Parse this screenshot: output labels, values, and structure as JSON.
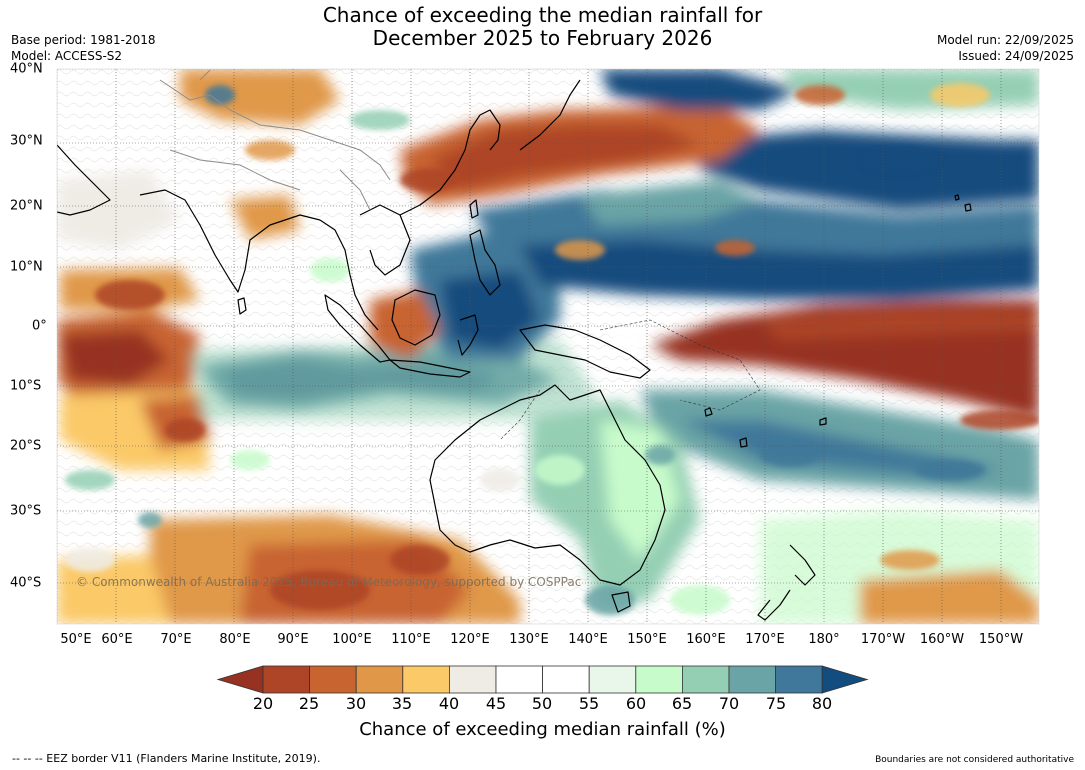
{
  "title_line1": "Chance of exceeding the median rainfall for",
  "title_line2": "December 2025 to February 2026",
  "base_period": "Base period: 1981-2018",
  "model": "Model: ACCESS-S2",
  "model_run": "Model run: 22/09/2025",
  "issued": "Issued: 24/09/2025",
  "copyright": "© Commonwealth of Australia 2025, Bureau of Meteorology, supported by COSPPac",
  "eez_note": "--  --  -- EEZ border V11 (Flanders Marine Institute, 2019).",
  "boundaries_note": "Boundaries are not considered authoritative",
  "lat_labels": [
    "40°N",
    "30°N",
    "20°N",
    "10°N",
    "0°",
    "10°S",
    "20°S",
    "30°S",
    "40°S"
  ],
  "lon_labels": [
    "50°E",
    "60°E",
    "70°E",
    "80°E",
    "90°E",
    "100°E",
    "110°E",
    "120°E",
    "130°E",
    "140°E",
    "150°E",
    "160°E",
    "170°E",
    "180°",
    "170°W",
    "160°W",
    "150°W"
  ],
  "colorbar": {
    "title": "Chance of exceeding median rainfall (%)",
    "ticks": [
      "20",
      "25",
      "30",
      "35",
      "40",
      "45",
      "50",
      "55",
      "60",
      "65",
      "70",
      "75",
      "80"
    ],
    "colors": [
      "#973121",
      "#ad4526",
      "#c86430",
      "#e09848",
      "#fbc968",
      "#efece6",
      "#ffffff",
      "#ffffff",
      "#e9f6ea",
      "#c7fbcb",
      "#94cfb4",
      "#6ba4a6",
      "#3f789a",
      "#134c7e"
    ]
  }
}
